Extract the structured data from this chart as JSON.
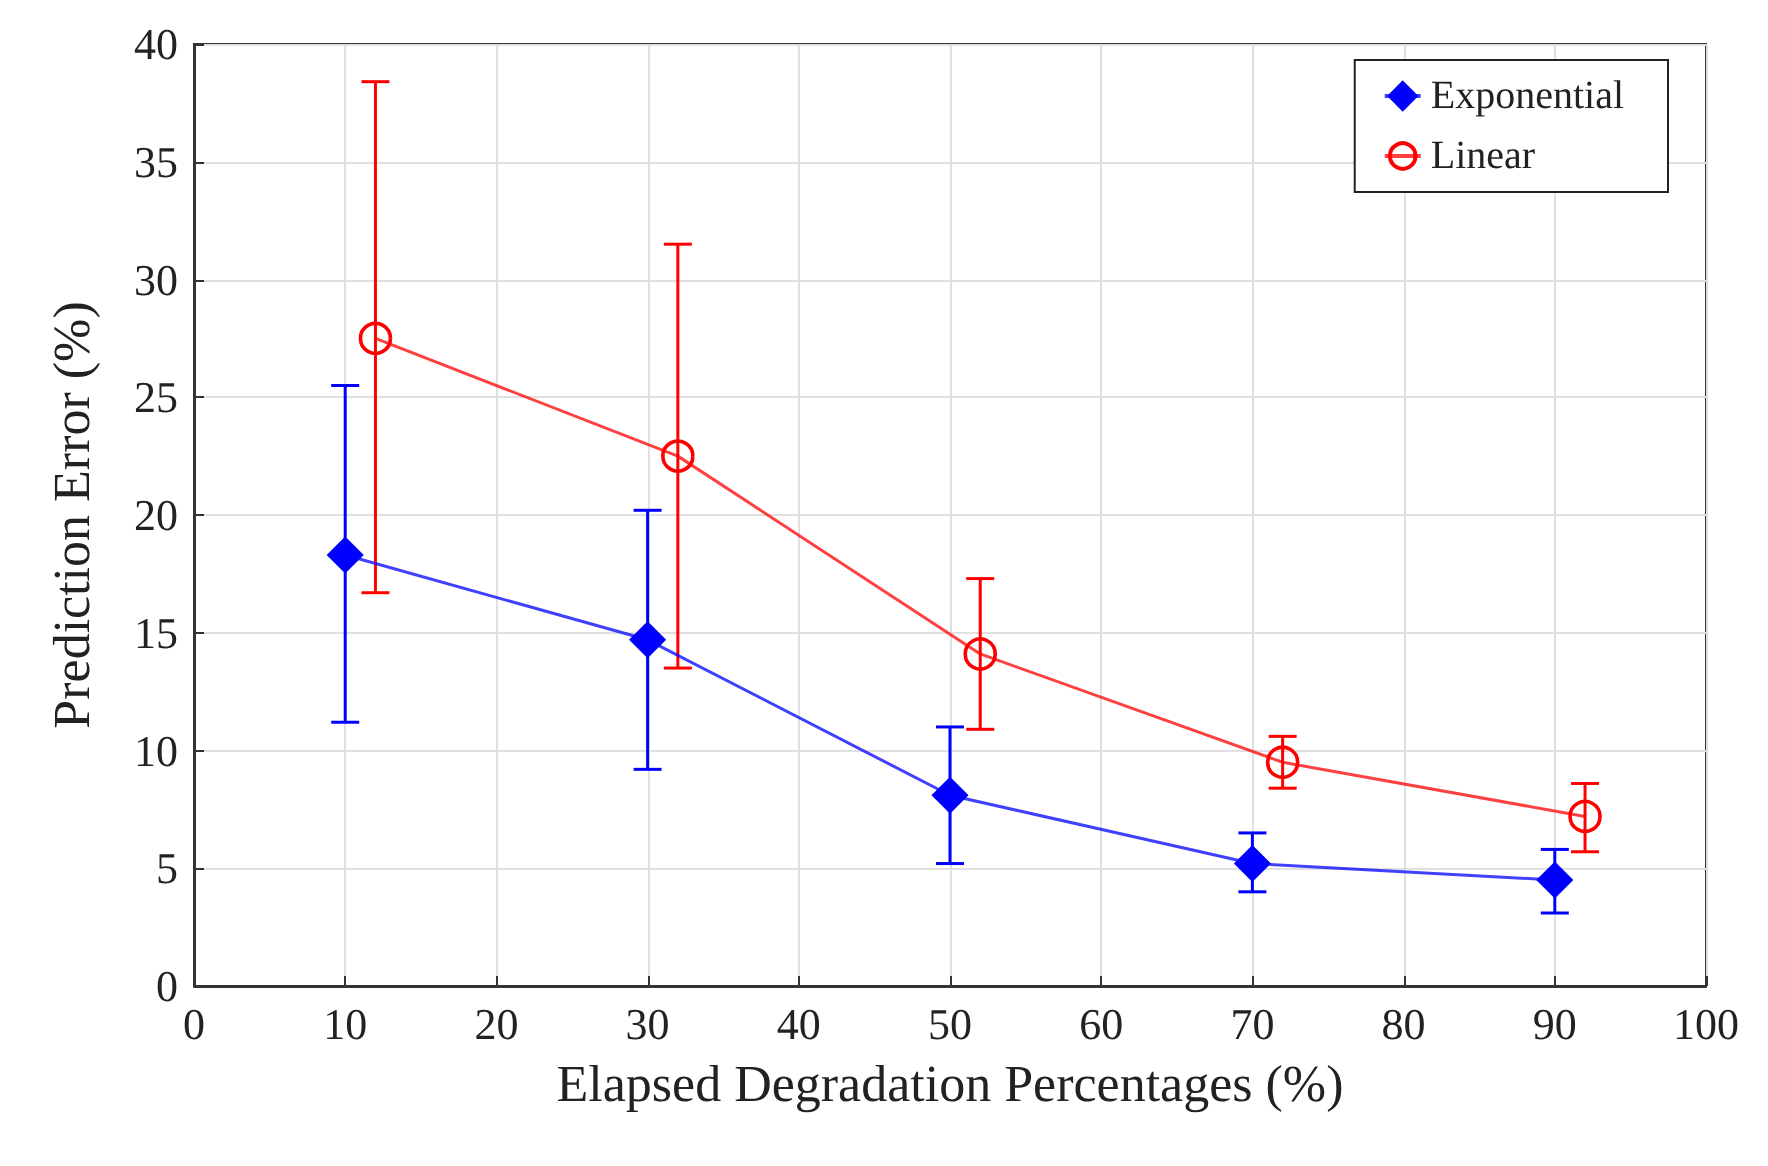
{
  "chart_data": {
    "type": "line",
    "xlabel": "Elapsed Degradation Percentages (%)",
    "ylabel": "Prediction Error (%)",
    "xlim": [
      0,
      100
    ],
    "xticks": [
      0,
      10,
      20,
      30,
      40,
      50,
      60,
      70,
      80,
      90,
      100
    ],
    "ylim": [
      0,
      40
    ],
    "yticks": [
      0,
      5,
      10,
      15,
      20,
      25,
      30,
      35,
      40
    ],
    "grid": true,
    "legend": "top right",
    "line_style": "solid",
    "series": [
      {
        "name": "Exponential",
        "color": "#0000ff",
        "marker": "diamond",
        "x": [
          10,
          30,
          50,
          70,
          90
        ],
        "values": [
          18.3,
          14.7,
          8.1,
          5.2,
          4.5
        ],
        "errors": [
          [
            11.2,
            25.5
          ],
          [
            9.2,
            20.2
          ],
          [
            5.2,
            11.0
          ],
          [
            4.0,
            6.5
          ],
          [
            3.1,
            5.8
          ]
        ]
      },
      {
        "name": "Linear",
        "color": "#ff0000",
        "marker": "circle",
        "x": [
          12,
          32,
          52,
          72,
          92
        ],
        "values": [
          27.5,
          22.5,
          14.1,
          9.5,
          7.2
        ],
        "errors": [
          [
            16.7,
            38.4
          ],
          [
            13.5,
            31.5
          ],
          [
            10.9,
            17.3
          ],
          [
            8.4,
            10.6
          ],
          [
            5.7,
            8.6
          ]
        ]
      }
    ]
  }
}
